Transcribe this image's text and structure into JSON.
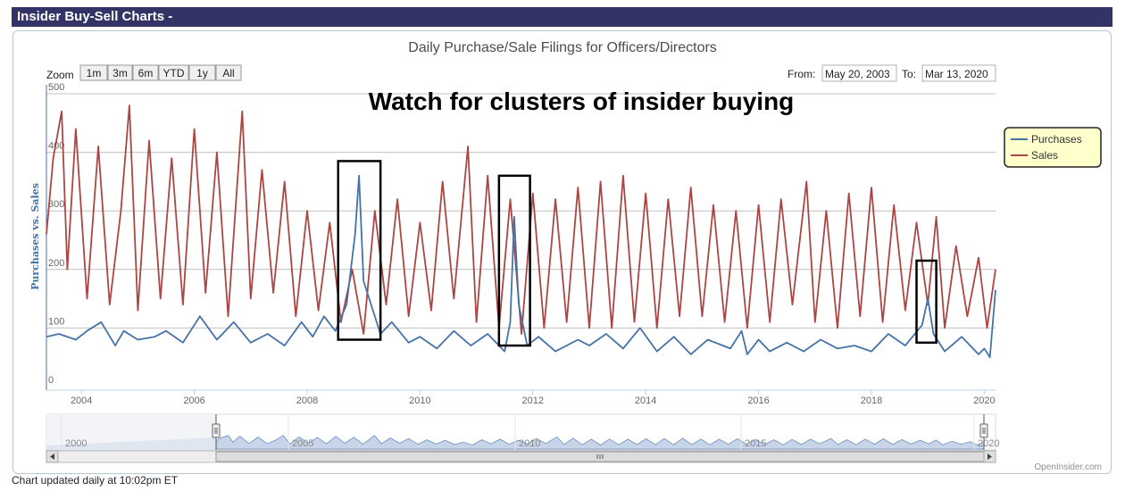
{
  "header": {
    "title": "Insider Buy-Sell Charts -"
  },
  "chart_title": "Daily Purchase/Sale Filings for Officers/Directors",
  "zoom": {
    "label": "Zoom",
    "buttons": [
      "1m",
      "3m",
      "6m",
      "YTD",
      "1y",
      "All"
    ]
  },
  "range": {
    "from_label": "From:",
    "from_value": "May 20, 2003",
    "to_label": "To:",
    "to_value": "Mar 13, 2020"
  },
  "annotation": "Watch for clusters of insider buying",
  "legend": {
    "purchases": "Purchases",
    "sales": "Sales"
  },
  "credit": "OpenInsider.com",
  "footer": "Chart updated daily at 10:02pm ET",
  "colors": {
    "purchases": "#4572a7",
    "sales": "#aa4643",
    "titlebar": "#333366",
    "legend_bg": "#ffffcc"
  },
  "navigator": {
    "labels": [
      "2000",
      "2005",
      "2010",
      "2015",
      "2020"
    ]
  },
  "chart_data": {
    "type": "line",
    "title": "Daily Purchase/Sale Filings for Officers/Directors",
    "ylabel": "Purchases vs. Sales",
    "xlabel": "",
    "xlim": [
      2003.38,
      2020.2
    ],
    "ylim": [
      0,
      500
    ],
    "yticks": [
      0,
      100,
      200,
      300,
      400,
      500
    ],
    "xticks": [
      2004,
      2006,
      2008,
      2010,
      2012,
      2014,
      2016,
      2018,
      2020
    ],
    "highlight_boxes": [
      {
        "x": [
          2008.55,
          2009.3
        ],
        "y": [
          80,
          385
        ]
      },
      {
        "x": [
          2011.4,
          2011.95
        ],
        "y": [
          70,
          360
        ]
      },
      {
        "x": [
          2018.8,
          2019.15
        ],
        "y": [
          75,
          215
        ]
      }
    ],
    "series": [
      {
        "name": "Purchases",
        "color": "#4572a7",
        "x": [
          2003.38,
          2003.6,
          2003.9,
          2004.1,
          2004.35,
          2004.6,
          2004.75,
          2005.0,
          2005.3,
          2005.5,
          2005.8,
          2006.1,
          2006.4,
          2006.7,
          2007.0,
          2007.3,
          2007.6,
          2007.9,
          2008.1,
          2008.3,
          2008.5,
          2008.7,
          2008.85,
          2008.92,
          2009.0,
          2009.1,
          2009.3,
          2009.5,
          2009.8,
          2010.0,
          2010.3,
          2010.6,
          2010.9,
          2011.2,
          2011.5,
          2011.6,
          2011.67,
          2011.75,
          2011.9,
          2012.1,
          2012.4,
          2012.8,
          2013.0,
          2013.3,
          2013.6,
          2013.9,
          2014.2,
          2014.5,
          2014.8,
          2015.1,
          2015.5,
          2015.7,
          2015.8,
          2016.0,
          2016.2,
          2016.5,
          2016.8,
          2017.1,
          2017.4,
          2017.7,
          2018.0,
          2018.3,
          2018.6,
          2018.9,
          2019.0,
          2019.1,
          2019.3,
          2019.6,
          2019.9,
          2020.0,
          2020.1,
          2020.2
        ],
        "values": [
          85,
          90,
          80,
          95,
          110,
          70,
          95,
          80,
          85,
          95,
          75,
          120,
          80,
          110,
          75,
          90,
          70,
          110,
          85,
          120,
          95,
          140,
          260,
          360,
          180,
          150,
          90,
          110,
          75,
          85,
          65,
          95,
          70,
          90,
          60,
          110,
          290,
          140,
          70,
          85,
          60,
          80,
          70,
          90,
          65,
          100,
          60,
          85,
          55,
          80,
          65,
          95,
          55,
          80,
          60,
          75,
          60,
          80,
          65,
          70,
          60,
          90,
          70,
          105,
          150,
          90,
          60,
          85,
          55,
          65,
          50,
          165
        ]
      },
      {
        "name": "Sales",
        "color": "#aa4643",
        "x": [
          2003.38,
          2003.5,
          2003.65,
          2003.75,
          2003.9,
          2004.1,
          2004.3,
          2004.5,
          2004.7,
          2004.85,
          2005.0,
          2005.2,
          2005.4,
          2005.6,
          2005.8,
          2006.0,
          2006.2,
          2006.4,
          2006.6,
          2006.85,
          2007.0,
          2007.2,
          2007.4,
          2007.6,
          2007.8,
          2008.0,
          2008.2,
          2008.4,
          2008.6,
          2008.8,
          2009.0,
          2009.2,
          2009.4,
          2009.6,
          2009.8,
          2010.0,
          2010.2,
          2010.4,
          2010.6,
          2010.85,
          2011.0,
          2011.2,
          2011.4,
          2011.6,
          2011.8,
          2012.0,
          2012.2,
          2012.4,
          2012.6,
          2012.8,
          2013.0,
          2013.2,
          2013.4,
          2013.6,
          2013.8,
          2014.0,
          2014.2,
          2014.4,
          2014.6,
          2014.8,
          2015.0,
          2015.2,
          2015.4,
          2015.6,
          2015.8,
          2016.0,
          2016.2,
          2016.4,
          2016.6,
          2016.85,
          2017.0,
          2017.2,
          2017.4,
          2017.6,
          2017.8,
          2018.0,
          2018.2,
          2018.4,
          2018.6,
          2018.8,
          2019.0,
          2019.15,
          2019.3,
          2019.5,
          2019.7,
          2019.9,
          2020.05,
          2020.2
        ],
        "values": [
          260,
          390,
          470,
          200,
          440,
          150,
          410,
          140,
          300,
          480,
          130,
          420,
          150,
          390,
          140,
          440,
          160,
          400,
          120,
          470,
          150,
          370,
          160,
          350,
          120,
          300,
          130,
          280,
          110,
          200,
          90,
          300,
          140,
          320,
          120,
          280,
          130,
          350,
          150,
          410,
          110,
          360,
          100,
          320,
          90,
          330,
          100,
          320,
          110,
          340,
          100,
          350,
          100,
          360,
          110,
          330,
          100,
          320,
          120,
          340,
          120,
          310,
          110,
          300,
          100,
          310,
          110,
          320,
          140,
          350,
          110,
          300,
          100,
          330,
          120,
          340,
          110,
          310,
          130,
          280,
          140,
          290,
          100,
          240,
          120,
          220,
          100,
          200
        ]
      }
    ]
  }
}
